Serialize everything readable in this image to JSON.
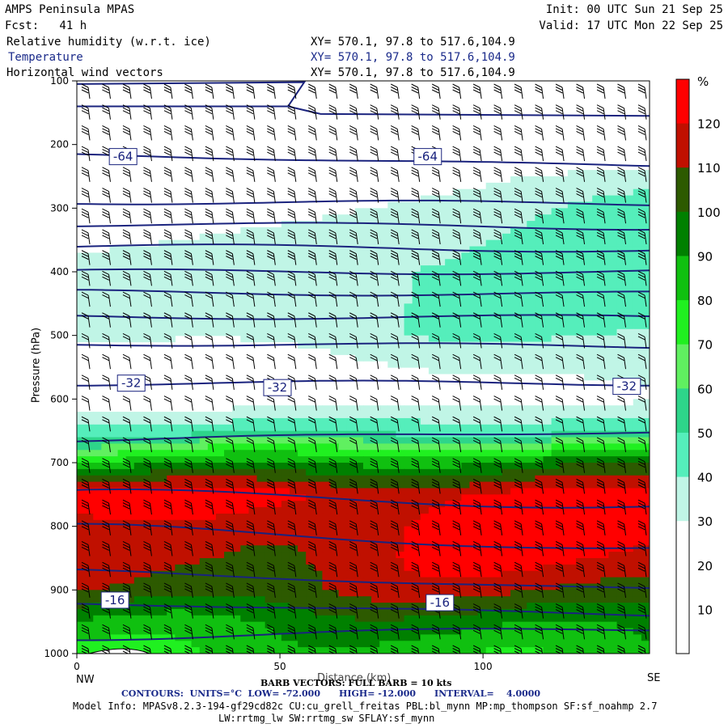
{
  "header": {
    "title": "AMPS Peninsula MPAS",
    "fcst": "Fcst:   41 h",
    "init": "Init: 00 UTC Sun 21 Sep 25",
    "valid": "Valid: 17 UTC Mon 22 Sep 25",
    "fields": [
      {
        "name": "Relative humidity (w.r.t. ice)",
        "coords": "XY= 570.1, 97.8 to 517.6,104.9"
      },
      {
        "name": "Temperature",
        "coords": "XY= 570.1, 97.8 to 517.6,104.9"
      },
      {
        "name": "Horizontal wind vectors",
        "coords": "XY= 570.1, 97.8 to 517.6,104.9"
      }
    ]
  },
  "footer": {
    "barb": "BARB VECTORS: FULL BARB = 10 kts",
    "contours_label": "CONTOURS:  UNITS=°C  LOW= -72.000      HIGH= -12.000      INTERVAL=    4.0000",
    "model_info": "Model Info: MPASv8.2.3-194-gf29cd82c CU:cu_grell_freitas PBL:bl_mynn MP:mp_thompson SF:sf_noahmp 2.7",
    "model_info2": "LW:rrtmg_lw SW:rrtmg_sw SFLAY:sf_mynn"
  },
  "chart_data": {
    "type": "heatmap",
    "ylabel": "Pressure (hPa)",
    "xlabel": "Distance (km)",
    "x_left_label": "NW",
    "x_right_label": "SE",
    "xlim": [
      0,
      141
    ],
    "ylim": [
      1000,
      100
    ],
    "xticks": [
      0,
      50,
      100
    ],
    "yticks": [
      100,
      200,
      300,
      400,
      500,
      600,
      700,
      800,
      900,
      1000
    ],
    "colorbar": {
      "unit": "%",
      "levels": [
        0,
        10,
        20,
        30,
        40,
        50,
        60,
        70,
        80,
        90,
        100,
        110,
        120,
        130
      ],
      "labels": [
        "10",
        "20",
        "30",
        "40",
        "50",
        "60",
        "70",
        "80",
        "90",
        "100",
        "110",
        "120"
      ],
      "colors": [
        "#ffffff",
        "#ffffff",
        "#ffffff",
        "#c0f5e6",
        "#55eebb",
        "#2ed58a",
        "#60f060",
        "#20f020",
        "#10c010",
        "#008000",
        "#2d5a00",
        "#c01000",
        "#ff0000"
      ]
    },
    "rh_profile": {
      "pressure": [
        100,
        200,
        250,
        300,
        400,
        500,
        550,
        600,
        650,
        700,
        750,
        800,
        850,
        900,
        950,
        1000
      ],
      "rh_left": [
        5,
        8,
        12,
        18,
        35,
        32,
        15,
        22,
        45,
        85,
        125,
        112,
        112,
        108,
        90,
        80
      ],
      "rh_right": [
        5,
        15,
        35,
        42,
        45,
        42,
        35,
        28,
        48,
        95,
        120,
        128,
        122,
        112,
        95,
        85
      ]
    },
    "temperature_contours": {
      "units": "°C",
      "low": -72,
      "high": -12,
      "interval": 4,
      "labels": [
        {
          "text": "-64",
          "x_km": 8,
          "p": 219
        },
        {
          "text": "-64",
          "x_km": 83,
          "p": 219
        },
        {
          "text": "-32",
          "x_km": 10,
          "p": 575
        },
        {
          "text": "-32",
          "x_km": 46,
          "p": 582
        },
        {
          "text": "-32",
          "x_km": 132,
          "p": 580
        },
        {
          "text": "-16",
          "x_km": 6,
          "p": 916
        },
        {
          "text": "-16",
          "x_km": 86,
          "p": 920
        }
      ],
      "lines": [
        {
          "p_left": 215,
          "p_right": 235
        },
        {
          "p_left": 290,
          "p_right": 293
        },
        {
          "p_left": 325,
          "p_right": 330
        },
        {
          "p_left": 360,
          "p_right": 365
        },
        {
          "p_left": 400,
          "p_right": 400
        },
        {
          "p_left": 432,
          "p_right": 435
        },
        {
          "p_left": 470,
          "p_right": 472
        },
        {
          "p_left": 512,
          "p_right": 518
        },
        {
          "p_left": 575,
          "p_right": 575
        },
        {
          "p_left": 665,
          "p_right": 650
        },
        {
          "p_left": 745,
          "p_right": 770
        },
        {
          "p_left": 800,
          "p_right": 838
        },
        {
          "p_left": 870,
          "p_right": 900
        },
        {
          "p_left": 920,
          "p_right": 940
        },
        {
          "p_left": 975,
          "p_right": 960
        }
      ]
    },
    "wind_barbs": {
      "full_barb_kts": 10,
      "columns": 28,
      "levels": 28
    }
  }
}
